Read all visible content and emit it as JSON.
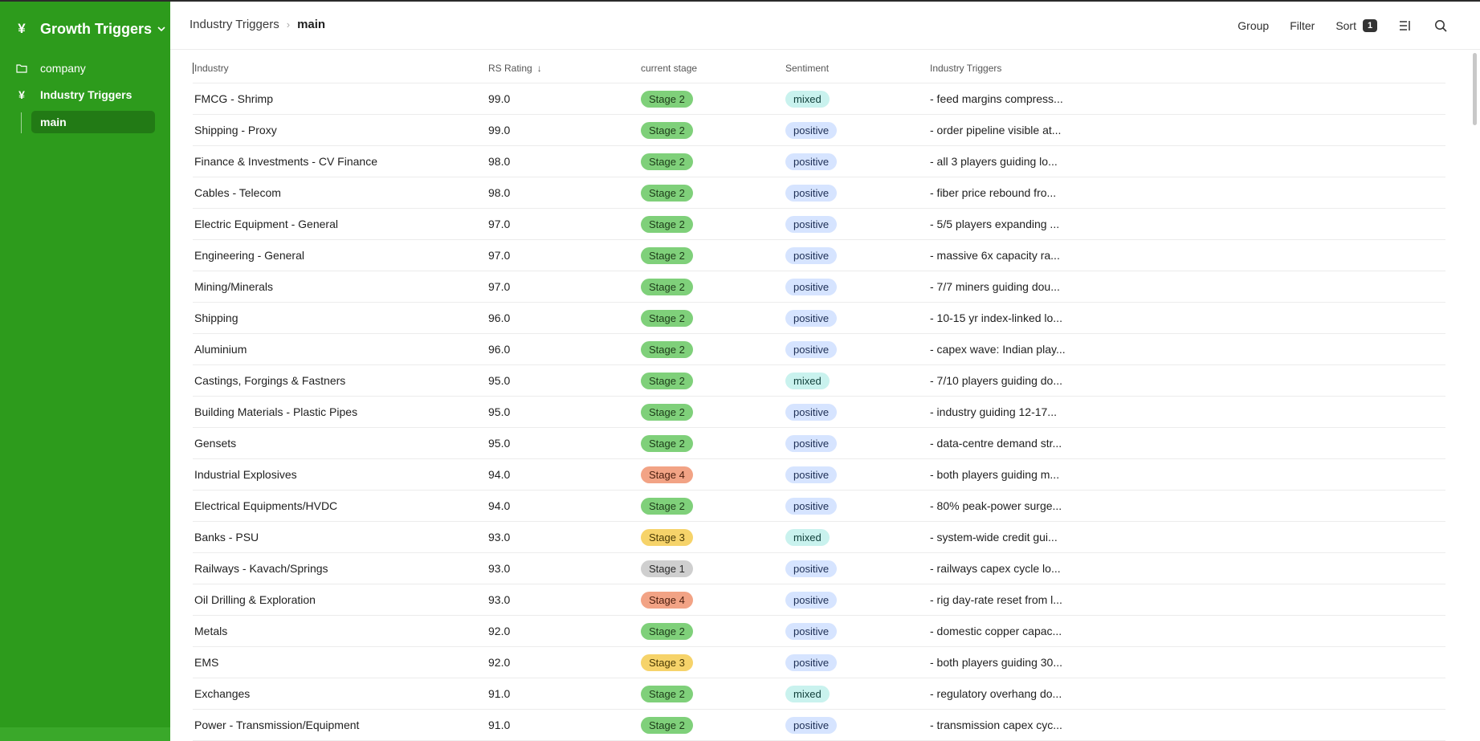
{
  "sidebar": {
    "workspace": {
      "icon": "yen-icon",
      "title": "Growth Triggers"
    },
    "items": [
      {
        "label": "company",
        "icon": "folder-icon"
      },
      {
        "label": "Industry Triggers",
        "icon": "yen-icon"
      }
    ],
    "subitems": [
      {
        "label": "main"
      }
    ]
  },
  "header": {
    "breadcrumb": [
      "Industry Triggers",
      "main"
    ],
    "toolbar": {
      "group": "Group",
      "filter": "Filter",
      "sort": "Sort",
      "sort_count": "1"
    }
  },
  "table": {
    "columns": [
      "Industry",
      "RS Rating",
      "current stage",
      "Sentiment",
      "Industry Triggers"
    ],
    "rows": [
      {
        "industry": "FMCG - Shrimp",
        "rs": "99.0",
        "stage": "Stage 2",
        "sentiment": "mixed",
        "trigger": "- feed margins compress..."
      },
      {
        "industry": "Shipping - Proxy",
        "rs": "99.0",
        "stage": "Stage 2",
        "sentiment": "positive",
        "trigger": "- order pipeline visible at..."
      },
      {
        "industry": "Finance & Investments - CV Finance",
        "rs": "98.0",
        "stage": "Stage 2",
        "sentiment": "positive",
        "trigger": "- all 3 players guiding lo..."
      },
      {
        "industry": "Cables - Telecom",
        "rs": "98.0",
        "stage": "Stage 2",
        "sentiment": "positive",
        "trigger": "- fiber price rebound fro..."
      },
      {
        "industry": "Electric Equipment - General",
        "rs": "97.0",
        "stage": "Stage 2",
        "sentiment": "positive",
        "trigger": "- 5/5 players expanding ..."
      },
      {
        "industry": "Engineering - General",
        "rs": "97.0",
        "stage": "Stage 2",
        "sentiment": "positive",
        "trigger": "- massive 6x capacity ra..."
      },
      {
        "industry": "Mining/Minerals",
        "rs": "97.0",
        "stage": "Stage 2",
        "sentiment": "positive",
        "trigger": "- 7/7 miners guiding dou..."
      },
      {
        "industry": "Shipping",
        "rs": "96.0",
        "stage": "Stage 2",
        "sentiment": "positive",
        "trigger": "- 10-15 yr index-linked lo..."
      },
      {
        "industry": "Aluminium",
        "rs": "96.0",
        "stage": "Stage 2",
        "sentiment": "positive",
        "trigger": "- capex wave: Indian play..."
      },
      {
        "industry": "Castings, Forgings & Fastners",
        "rs": "95.0",
        "stage": "Stage 2",
        "sentiment": "mixed",
        "trigger": "- 7/10 players guiding do..."
      },
      {
        "industry": "Building Materials - Plastic Pipes",
        "rs": "95.0",
        "stage": "Stage 2",
        "sentiment": "positive",
        "trigger": "- industry guiding 12-17..."
      },
      {
        "industry": "Gensets",
        "rs": "95.0",
        "stage": "Stage 2",
        "sentiment": "positive",
        "trigger": "- data-centre demand str..."
      },
      {
        "industry": "Industrial Explosives",
        "rs": "94.0",
        "stage": "Stage 4",
        "sentiment": "positive",
        "trigger": "- both players guiding m..."
      },
      {
        "industry": "Electrical Equipments/HVDC",
        "rs": "94.0",
        "stage": "Stage 2",
        "sentiment": "positive",
        "trigger": "- 80% peak-power surge..."
      },
      {
        "industry": "Banks - PSU",
        "rs": "93.0",
        "stage": "Stage 3",
        "sentiment": "mixed",
        "trigger": "- system-wide credit gui..."
      },
      {
        "industry": "Railways - Kavach/Springs",
        "rs": "93.0",
        "stage": "Stage 1",
        "sentiment": "positive",
        "trigger": "- railways capex cycle lo..."
      },
      {
        "industry": "Oil Drilling & Exploration",
        "rs": "93.0",
        "stage": "Stage 4",
        "sentiment": "positive",
        "trigger": "- rig day-rate reset from l..."
      },
      {
        "industry": "Metals",
        "rs": "92.0",
        "stage": "Stage 2",
        "sentiment": "positive",
        "trigger": "- domestic copper capac..."
      },
      {
        "industry": "EMS",
        "rs": "92.0",
        "stage": "Stage 3",
        "sentiment": "positive",
        "trigger": "- both players guiding 30..."
      },
      {
        "industry": "Exchanges",
        "rs": "91.0",
        "stage": "Stage 2",
        "sentiment": "mixed",
        "trigger": "- regulatory overhang do..."
      },
      {
        "industry": "Power - Transmission/Equipment",
        "rs": "91.0",
        "stage": "Stage 2",
        "sentiment": "positive",
        "trigger": "- transmission capex cyc..."
      }
    ]
  },
  "colors": {
    "sidebar_bg": "#2d9b1c",
    "sidebar_active": "#227a15",
    "stage_2": "#7fd07a",
    "stage_3": "#f6d36a",
    "stage_4": "#f2a385",
    "stage_1": "#cfcfcf",
    "positive": "#d6e4ff",
    "mixed": "#c9f2ee"
  }
}
